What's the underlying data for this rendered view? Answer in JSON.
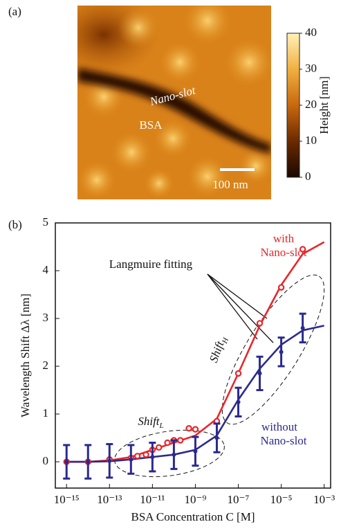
{
  "chart_data": [
    {
      "type": "image",
      "panel_label": "(a)",
      "annotations": [
        "Nano-slot",
        "BSA",
        "100 nm"
      ],
      "colorbar": {
        "label": "Height [nm]",
        "clim": [
          0,
          40
        ],
        "ticks": [
          0,
          10,
          20,
          30,
          40
        ]
      }
    },
    {
      "type": "line",
      "panel_label": "(b)",
      "xlabel": "BSA Concentration C [M]",
      "ylabel": "Wavelength Shift Δλ [nm]",
      "xscale": "log",
      "xlim": [
        3e-16,
        0.002
      ],
      "ylim": [
        -0.55,
        5
      ],
      "xticks": [
        {
          "value": 1e-15,
          "label": "10⁻¹⁵"
        },
        {
          "value": 1e-13,
          "label": "10⁻¹³"
        },
        {
          "value": 1e-11,
          "label": "10⁻¹¹"
        },
        {
          "value": 1e-09,
          "label": "10⁻⁹"
        },
        {
          "value": 1e-07,
          "label": "10⁻⁷"
        },
        {
          "value": 1e-05,
          "label": "10⁻⁵"
        },
        {
          "value": 0.001,
          "label": "10⁻³"
        }
      ],
      "yticks": [
        0,
        1,
        2,
        3,
        4,
        5
      ],
      "series": [
        {
          "style": "markers",
          "color": "#e8262a",
          "x": [
            1e-15,
            1e-14,
            1e-13,
            1e-12,
            2e-12,
            5e-12,
            1e-11,
            2e-11,
            5e-11,
            1e-10,
            2e-10,
            5e-10,
            1e-09,
            1e-08,
            1e-07,
            1e-06,
            1e-05,
            0.0001
          ],
          "values": [
            0,
            0,
            0.05,
            0.08,
            0.12,
            0.15,
            0.25,
            0.3,
            0.4,
            0.45,
            0.45,
            0.7,
            0.68,
            0.85,
            1.85,
            2.9,
            3.65,
            4.45
          ]
        },
        {
          "style": "errorbars",
          "color": "#2b2a8e",
          "x": [
            1e-15,
            1e-14,
            1e-13,
            1e-12,
            1e-11,
            1e-10,
            1e-09,
            1e-08,
            1e-07,
            1e-06,
            1e-05,
            0.0001
          ],
          "values": [
            0,
            0,
            0.02,
            0.05,
            0.1,
            0.15,
            0.22,
            0.5,
            1.25,
            1.85,
            2.3,
            2.8
          ],
          "errors": [
            0.35,
            0.35,
            0.35,
            0.3,
            0.3,
            0.3,
            0.3,
            0.3,
            0.3,
            0.35,
            0.3,
            0.3
          ]
        },
        {
          "style": "line",
          "color": "#e8262a",
          "x": [
            1e-15,
            1e-14,
            1e-13,
            1e-12,
            1e-11,
            1e-10,
            1e-09,
            1e-08,
            1e-07,
            1e-06,
            1e-05,
            0.0001,
            0.001
          ],
          "values": [
            0,
            0,
            0.03,
            0.1,
            0.25,
            0.4,
            0.55,
            0.9,
            1.85,
            2.85,
            3.7,
            4.35,
            4.6
          ]
        },
        {
          "style": "line",
          "color": "#2b2a8e",
          "x": [
            1e-15,
            1e-14,
            1e-13,
            1e-12,
            1e-11,
            1e-10,
            1e-09,
            1e-08,
            1e-07,
            1e-06,
            1e-05,
            0.0001,
            0.001
          ],
          "values": [
            0,
            0,
            0.01,
            0.05,
            0.1,
            0.15,
            0.25,
            0.55,
            1.3,
            1.95,
            2.45,
            2.75,
            2.85
          ]
        }
      ],
      "annotations": [
        "with",
        "Nano-slot",
        "without",
        "Nano-slot",
        "Langmuire fitting"
      ],
      "shift_labels": [
        {
          "text": "Shift",
          "subscript": "L"
        },
        {
          "text": "Shift",
          "subscript": "H"
        }
      ]
    }
  ]
}
